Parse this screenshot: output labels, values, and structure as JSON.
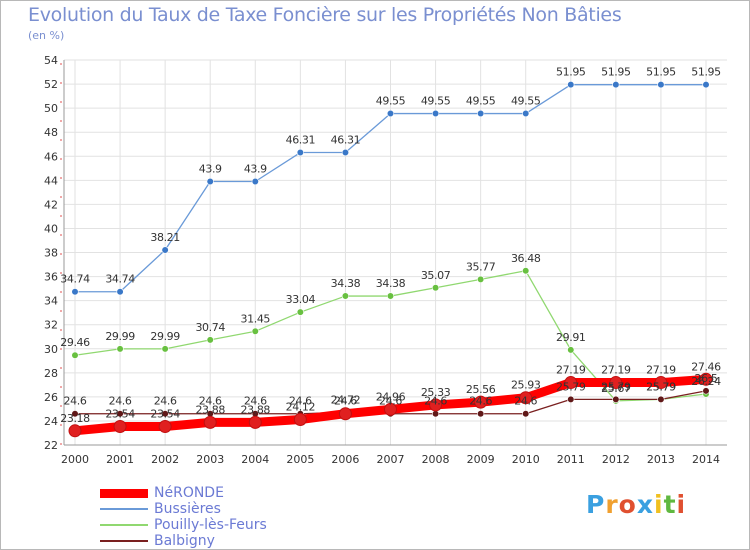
{
  "title": "Evolution du Taux de Taxe Foncière sur les Propriétés Non Bâties",
  "unit_label": "(en %)",
  "logo": {
    "text": "Proxiti",
    "letters": [
      "P",
      "r",
      "o",
      "x",
      "i",
      "t",
      "i"
    ],
    "colors": [
      "#3aa0e0",
      "#f0a030",
      "#e05030",
      "#3aa0e0",
      "#f0c020",
      "#60b840",
      "#e05030"
    ]
  },
  "chart_data": {
    "type": "line",
    "title": "Evolution du Taux de Taxe Foncière sur les Propriétés Non Bâties",
    "ylabel": "(en %)",
    "xlabel": "",
    "ylim": [
      22,
      54
    ],
    "y_ticks": [
      22,
      24,
      26,
      28,
      30,
      32,
      34,
      36,
      38,
      40,
      42,
      44,
      46,
      48,
      50,
      52,
      54
    ],
    "x": [
      "2000",
      "2001",
      "2002",
      "2003",
      "2004",
      "2005",
      "2006",
      "2007",
      "2008",
      "2009",
      "2010",
      "2011",
      "2012",
      "2013",
      "2014"
    ],
    "grid": true,
    "legend_position": "bottom-left",
    "series": [
      {
        "name": "NéRONDE",
        "color": "#ff0000",
        "marker": "#e02020",
        "values": [
          23.18,
          23.54,
          23.54,
          23.88,
          23.88,
          24.12,
          24.6,
          24.96,
          25.33,
          25.56,
          25.93,
          27.19,
          27.19,
          27.19,
          27.46
        ],
        "labels": [
          "23.18",
          "23.54",
          "23.54",
          "23.88",
          "23.88",
          "24.12",
          "24.6",
          "24.96",
          "25.33",
          "25.56",
          "25.93",
          "27.19",
          "27.19",
          "27.19",
          "27.46"
        ]
      },
      {
        "name": "Bussières",
        "color": "#6a9ad8",
        "marker": "#3a78c8",
        "values": [
          34.74,
          34.74,
          38.21,
          43.9,
          43.9,
          46.31,
          46.31,
          49.55,
          49.55,
          49.55,
          49.55,
          51.95,
          51.95,
          51.95,
          51.95
        ],
        "labels": [
          "34.74",
          "34.74",
          "38.21",
          "43.9",
          "43.9",
          "46.31",
          "46.31",
          "49.55",
          "49.55",
          "49.55",
          "49.55",
          "51.95",
          "51.95",
          "51.95",
          "51.95"
        ]
      },
      {
        "name": "Pouilly-lès-Feurs",
        "color": "#90d870",
        "marker": "#68c040",
        "values": [
          29.46,
          29.99,
          29.99,
          30.74,
          31.45,
          33.04,
          34.38,
          34.38,
          35.07,
          35.77,
          36.48,
          29.91,
          25.67,
          25.79,
          26.24
        ],
        "labels": [
          "29.46",
          "29.99",
          "29.99",
          "30.74",
          "31.45",
          "33.04",
          "34.38",
          "34.38",
          "35.07",
          "35.77",
          "36.48",
          "29.91",
          "25.67",
          "25.79",
          "26.24"
        ]
      },
      {
        "name": "Balbigny",
        "color": "#7a2020",
        "marker": "#601818",
        "values": [
          24.6,
          24.6,
          24.6,
          24.6,
          24.6,
          24.6,
          24.72,
          24.6,
          24.6,
          24.6,
          24.6,
          25.79,
          25.79,
          25.79,
          26.5
        ],
        "labels": [
          "24.6",
          "24.6",
          "24.6",
          "24.6",
          "24.6",
          "24.6",
          "24.72",
          "24.6",
          "24.6",
          "24.6",
          "24.6",
          "25.79",
          "25.79",
          "25.79",
          "26.5"
        ]
      }
    ]
  }
}
